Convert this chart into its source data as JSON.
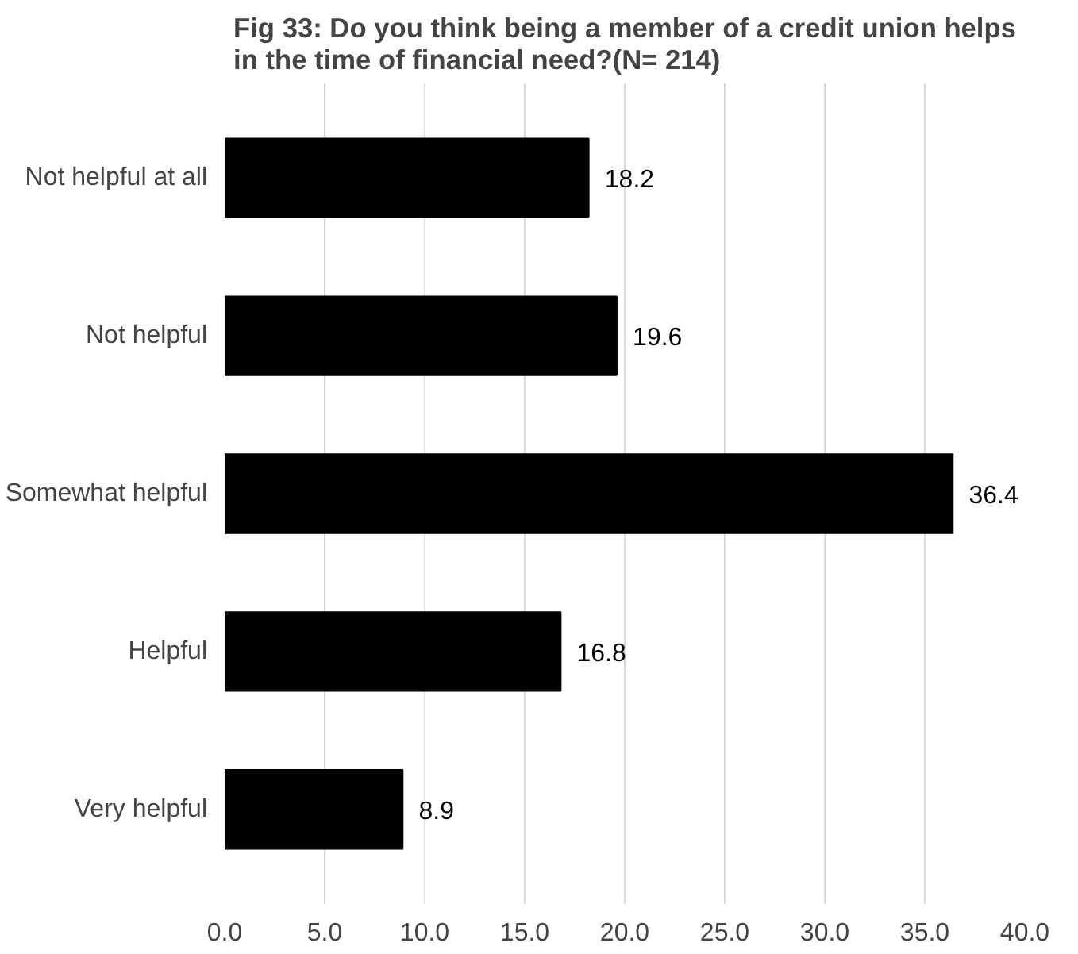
{
  "chart_data": {
    "type": "bar",
    "orientation": "horizontal",
    "title": "Fig 33: Do you think being a member of a credit union helps in the time of financial need?(N= 214)",
    "categories": [
      "Not helpful at all",
      "Not helpful",
      "Somewhat helpful",
      "Helpful",
      "Very helpful"
    ],
    "values": [
      18.2,
      19.6,
      36.4,
      16.8,
      8.9
    ],
    "color": "#000000",
    "xlim": [
      0,
      40
    ],
    "xticks": [
      {
        "value": 0,
        "label": "0.0"
      },
      {
        "value": 5,
        "label": "5.0"
      },
      {
        "value": 10,
        "label": "10.0"
      },
      {
        "value": 15,
        "label": "15.0"
      },
      {
        "value": 20,
        "label": "20.0"
      },
      {
        "value": 25,
        "label": "25.0"
      },
      {
        "value": 30,
        "label": "30.0"
      },
      {
        "value": 35,
        "label": "35.0"
      },
      {
        "value": 40,
        "label": "40.0"
      }
    ],
    "grid": "x",
    "data_labels": true
  }
}
